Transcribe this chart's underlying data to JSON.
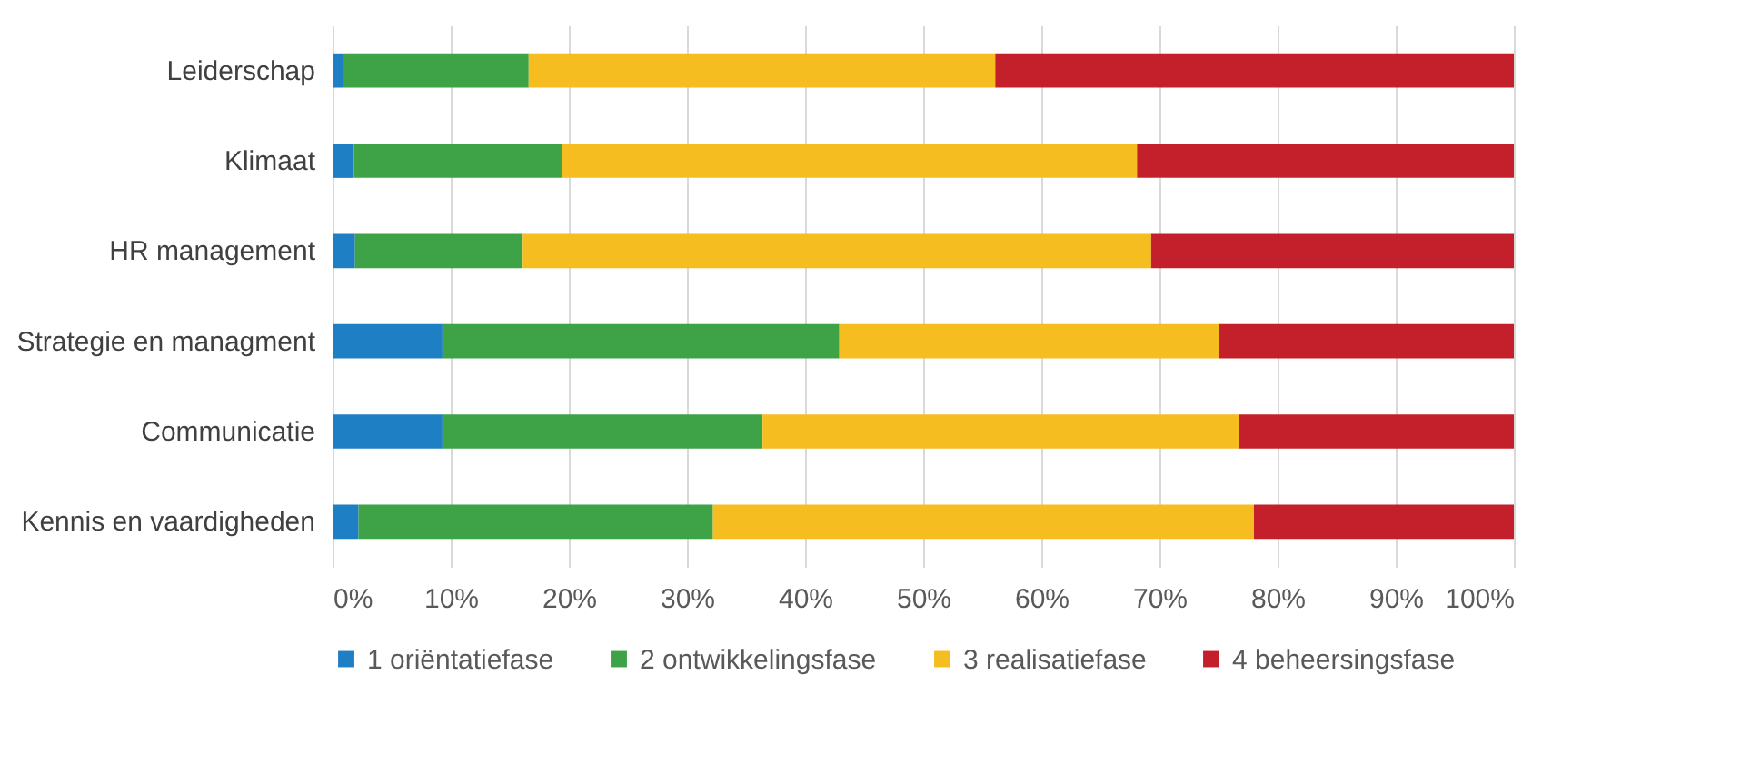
{
  "chart_data": {
    "type": "bar",
    "orientation": "horizontal",
    "stacked": true,
    "categories": [
      "Leiderschap",
      "Klimaat",
      "HR management",
      "Strategie en managment",
      "Communicatie",
      "Kennis en vaardigheden"
    ],
    "series": [
      {
        "name": "1 oriëntatiefase",
        "color": "#1f7fc4",
        "values": [
          0.9,
          1.8,
          1.9,
          9.3,
          9.3,
          2.2
        ]
      },
      {
        "name": "2 ontwikkelingsfase",
        "color": "#3ea346",
        "values": [
          15.7,
          17.6,
          14.2,
          33.6,
          27.1,
          30.0
        ]
      },
      {
        "name": "3 realisatiefase",
        "color": "#f5bd1f",
        "values": [
          39.5,
          48.7,
          53.2,
          32.1,
          40.3,
          45.8
        ]
      },
      {
        "name": "4 beheersingsfase",
        "color": "#c4202b",
        "values": [
          43.9,
          31.9,
          30.7,
          25.0,
          23.3,
          22.0
        ]
      }
    ],
    "xlim": [
      0,
      100
    ],
    "xticks": [
      {
        "value": 0,
        "label": "0%"
      },
      {
        "value": 10,
        "label": "10%"
      },
      {
        "value": 20,
        "label": "20%"
      },
      {
        "value": 30,
        "label": "30%"
      },
      {
        "value": 40,
        "label": "40%"
      },
      {
        "value": 50,
        "label": "50%"
      },
      {
        "value": 60,
        "label": "60%"
      },
      {
        "value": 70,
        "label": "70%"
      },
      {
        "value": 80,
        "label": "80%"
      },
      {
        "value": 90,
        "label": "90%"
      },
      {
        "value": 100,
        "label": "100%"
      }
    ],
    "grid": "x",
    "legend": "bottom"
  }
}
